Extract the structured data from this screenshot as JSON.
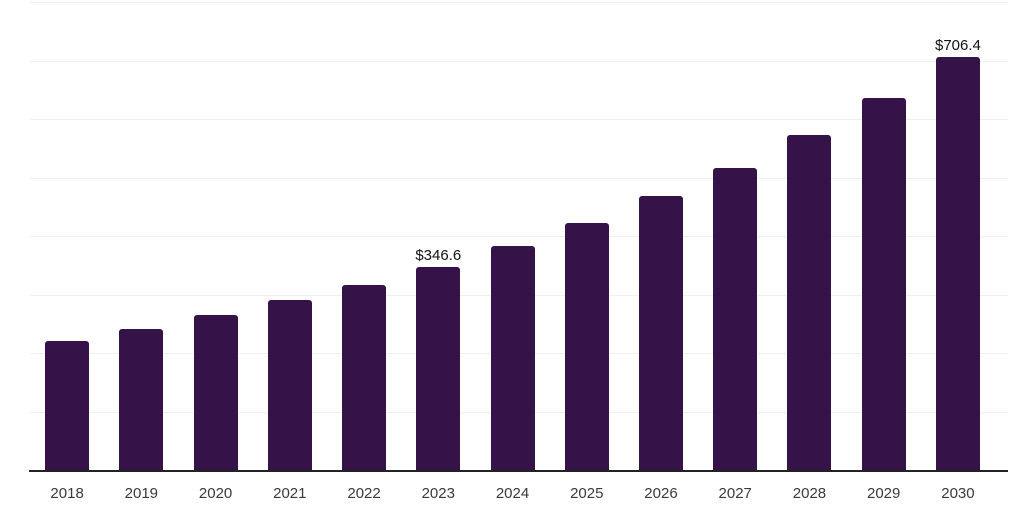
{
  "chart_data": {
    "type": "bar",
    "title": "",
    "xlabel": "",
    "ylabel": "",
    "categories": [
      "2018",
      "2019",
      "2020",
      "2021",
      "2022",
      "2023",
      "2024",
      "2025",
      "2026",
      "2027",
      "2028",
      "2029",
      "2030"
    ],
    "values": [
      220.3,
      241.0,
      264.4,
      290.4,
      316.2,
      346.6,
      382.9,
      422.8,
      468.0,
      516.5,
      572.6,
      635.4,
      706.4
    ],
    "value_labels": {
      "2023": "$346.6",
      "2030": "$706.4"
    },
    "ylim": [
      0,
      800
    ],
    "ytick_interval": 100,
    "grid": true,
    "legend": "none",
    "colors": {
      "bar": "#351349",
      "gridline": "#f0f0f2",
      "axis_line": "#222222",
      "tick_label": "#3a3a3a",
      "value_label": "#111111"
    }
  }
}
